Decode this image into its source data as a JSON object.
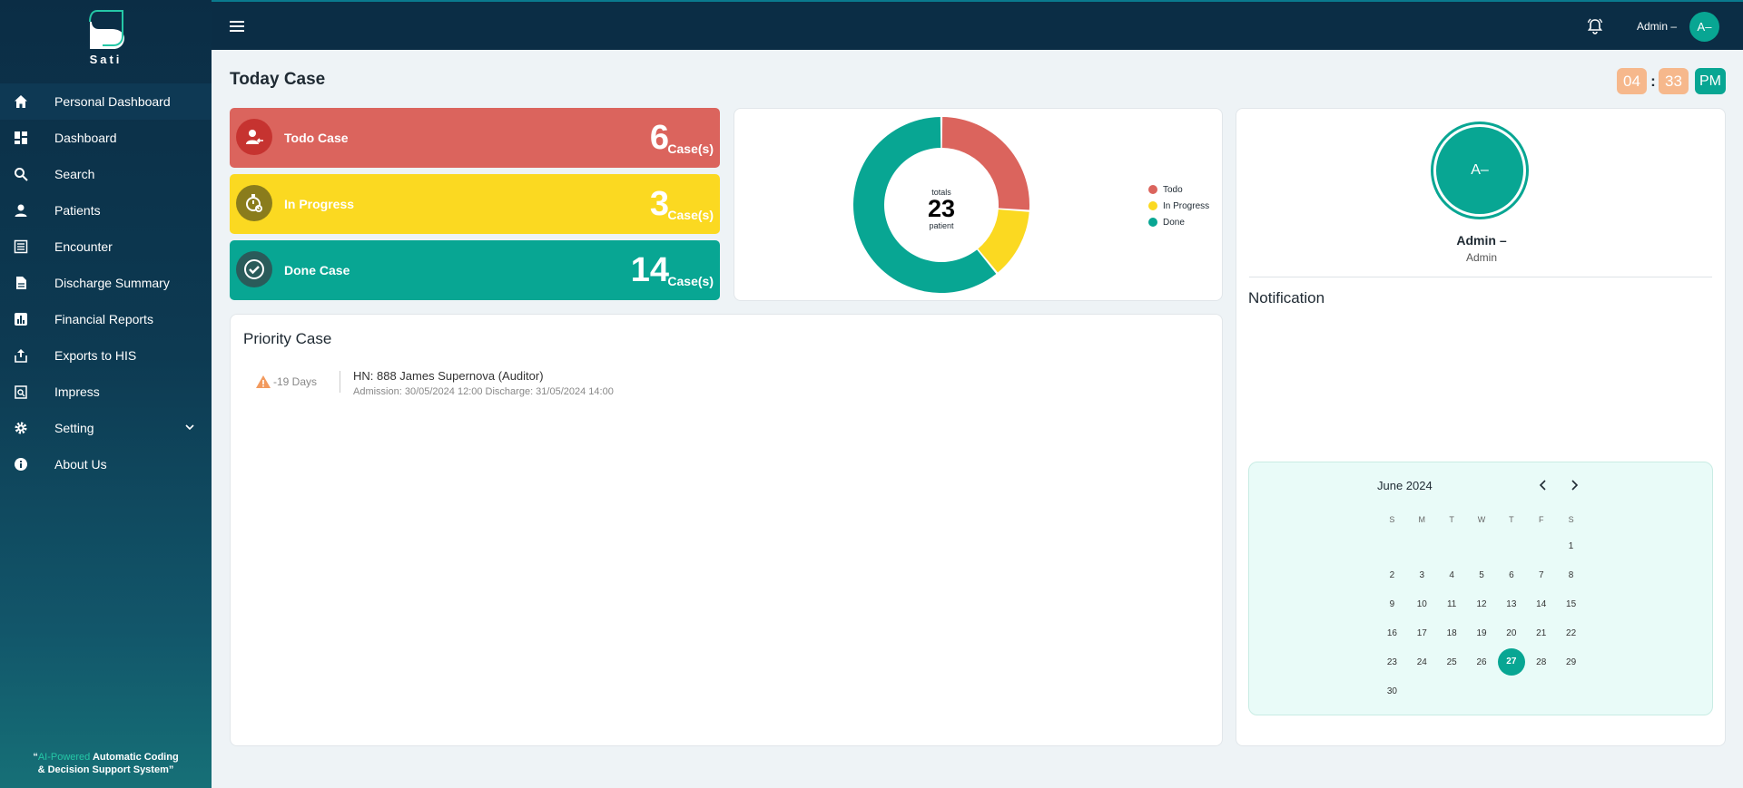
{
  "sidebar": {
    "logo_text": "Sati",
    "items": [
      {
        "label": "Personal Dashboard",
        "icon": "home-icon"
      },
      {
        "label": "Dashboard",
        "icon": "dashboard-icon"
      },
      {
        "label": "Search",
        "icon": "search-icon"
      },
      {
        "label": "Patients",
        "icon": "person-icon"
      },
      {
        "label": "Encounter",
        "icon": "list-icon"
      },
      {
        "label": "Discharge Summary",
        "icon": "document-icon"
      },
      {
        "label": "Financial Reports",
        "icon": "bar-chart-icon"
      },
      {
        "label": "Exports to HIS",
        "icon": "export-icon"
      },
      {
        "label": "Impress",
        "icon": "clipboard-search-icon"
      },
      {
        "label": "Setting",
        "icon": "gear-icon"
      },
      {
        "label": "About Us",
        "icon": "info-icon"
      }
    ],
    "tagline": {
      "quote_open": "“",
      "highlight": "AI-Powered",
      "rest_line1": " Automatic Coding",
      "line2": "& Decision Support System”"
    }
  },
  "topbar": {
    "user_name": "Admin –",
    "avatar_initials": "A–"
  },
  "page": {
    "title": "Today Case"
  },
  "clock": {
    "hour": "04",
    "separator": ":",
    "minute": "33",
    "period": "PM"
  },
  "cases": {
    "todo": {
      "label": "Todo Case",
      "count": "6",
      "unit": "Case(s)"
    },
    "in_progress": {
      "label": "In Progress",
      "count": "3",
      "unit": "Case(s)"
    },
    "done": {
      "label": "Done Case",
      "count": "14",
      "unit": "Case(s)"
    }
  },
  "donut": {
    "center_top": "totals",
    "center_value": "23",
    "center_bottom": "patient",
    "colors": {
      "todo": "#db645d",
      "in_progress": "#fbd921",
      "done": "#08a693"
    }
  },
  "chart_data": {
    "type": "pie",
    "categories": [
      "Todo",
      "In Progress",
      "Done"
    ],
    "values": [
      6,
      3,
      14
    ],
    "title": "",
    "legend_placement": "right"
  },
  "profile": {
    "avatar_initials": "A–",
    "name": "Admin –",
    "role": "Admin"
  },
  "notification": {
    "title": "Notification"
  },
  "calendar": {
    "title": "June 2024",
    "weekdays": [
      "S",
      "M",
      "T",
      "W",
      "T",
      "F",
      "S"
    ],
    "selected_day": "27",
    "weeks": [
      [
        "",
        "",
        "",
        "",
        "",
        "",
        "1"
      ],
      [
        "2",
        "3",
        "4",
        "5",
        "6",
        "7",
        "8"
      ],
      [
        "9",
        "10",
        "11",
        "12",
        "13",
        "14",
        "15"
      ],
      [
        "16",
        "17",
        "18",
        "19",
        "20",
        "21",
        "22"
      ],
      [
        "23",
        "24",
        "25",
        "26",
        "27",
        "28",
        "29"
      ],
      [
        "30",
        "",
        "",
        "",
        "",
        "",
        ""
      ]
    ]
  },
  "priority": {
    "title": "Priority Case",
    "items": [
      {
        "days": "-19 Days",
        "hn": "HN: 888 James Supernova (Auditor)",
        "dates": "Admission: 30/05/2024 12:00 Discharge: 31/05/2024 14:00"
      }
    ]
  }
}
